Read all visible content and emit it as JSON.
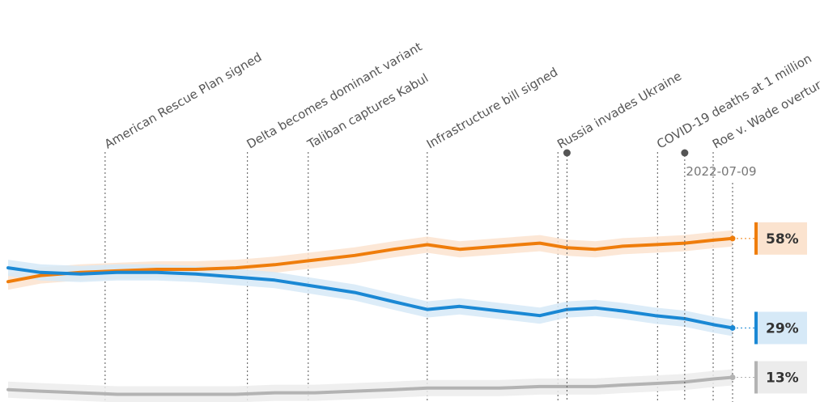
{
  "chart_data": {
    "type": "line",
    "x_range": [
      "2020-12-26",
      "2022-07-09"
    ],
    "y_range": [
      5,
      75
    ],
    "current_date_label": "2022-07-09",
    "events": [
      {
        "date": "2021-03-11",
        "label": "American Rescue Plan signed"
      },
      {
        "date": "2021-06-29",
        "label": "Delta becomes dominant variant"
      },
      {
        "date": "2021-08-15",
        "label": "Taliban captures Kabul"
      },
      {
        "date": "2021-11-15",
        "label": "Infrastructure bill signed"
      },
      {
        "date": "2022-02-24",
        "label": "Russia invades Ukraine"
      },
      {
        "date": "2022-05-12",
        "label": "COVID-19 deaths at 1 million"
      },
      {
        "date": "2022-06-24",
        "label": "Roe v. Wade overturned"
      }
    ],
    "markers": [
      {
        "date": "2022-03-03"
      },
      {
        "date": "2022-06-02"
      }
    ],
    "series": [
      {
        "color": "#ef7d0b",
        "band_color": "#fbe3cf",
        "end_label": "58%",
        "points": [
          [
            "2020-12-26",
            44
          ],
          [
            "2021-01-20",
            46
          ],
          [
            "2021-02-20",
            47
          ],
          [
            "2021-03-20",
            47.5
          ],
          [
            "2021-04-20",
            48
          ],
          [
            "2021-05-20",
            48
          ],
          [
            "2021-06-20",
            48.5
          ],
          [
            "2021-07-20",
            49.5
          ],
          [
            "2021-08-20",
            51
          ],
          [
            "2021-09-20",
            52.5
          ],
          [
            "2021-10-20",
            54.5
          ],
          [
            "2021-11-15",
            56
          ],
          [
            "2021-12-10",
            54.5
          ],
          [
            "2022-01-10",
            55.5
          ],
          [
            "2022-02-10",
            56.5
          ],
          [
            "2022-03-03",
            55
          ],
          [
            "2022-03-25",
            54.5
          ],
          [
            "2022-04-15",
            55.5
          ],
          [
            "2022-05-10",
            56
          ],
          [
            "2022-06-02",
            56.5
          ],
          [
            "2022-06-25",
            57.5
          ],
          [
            "2022-07-09",
            58
          ]
        ]
      },
      {
        "color": "#1a88d4",
        "band_color": "#d6e9f7",
        "end_label": "29%",
        "points": [
          [
            "2020-12-26",
            48.5
          ],
          [
            "2021-01-20",
            47
          ],
          [
            "2021-02-20",
            46.5
          ],
          [
            "2021-03-20",
            47
          ],
          [
            "2021-04-20",
            47
          ],
          [
            "2021-05-20",
            46.5
          ],
          [
            "2021-06-20",
            45.5
          ],
          [
            "2021-07-20",
            44.5
          ],
          [
            "2021-08-20",
            42.5
          ],
          [
            "2021-09-20",
            40.5
          ],
          [
            "2021-10-20",
            37.5
          ],
          [
            "2021-11-15",
            35
          ],
          [
            "2021-12-10",
            36
          ],
          [
            "2022-01-10",
            34.5
          ],
          [
            "2022-02-10",
            33
          ],
          [
            "2022-03-03",
            35
          ],
          [
            "2022-03-25",
            35.5
          ],
          [
            "2022-04-15",
            34.5
          ],
          [
            "2022-05-10",
            33
          ],
          [
            "2022-06-02",
            32
          ],
          [
            "2022-06-25",
            30
          ],
          [
            "2022-07-09",
            29
          ]
        ]
      },
      {
        "color": "#b3b3b3",
        "band_color": "#ececec",
        "end_label": "13%",
        "points": [
          [
            "2020-12-26",
            9
          ],
          [
            "2021-01-20",
            8.5
          ],
          [
            "2021-02-20",
            8
          ],
          [
            "2021-03-20",
            7.5
          ],
          [
            "2021-04-20",
            7.5
          ],
          [
            "2021-05-20",
            7.5
          ],
          [
            "2021-06-20",
            7.5
          ],
          [
            "2021-07-20",
            8
          ],
          [
            "2021-08-20",
            8
          ],
          [
            "2021-09-20",
            8.5
          ],
          [
            "2021-10-20",
            9
          ],
          [
            "2021-11-15",
            9.5
          ],
          [
            "2021-12-10",
            9.5
          ],
          [
            "2022-01-10",
            9.5
          ],
          [
            "2022-02-10",
            10
          ],
          [
            "2022-03-03",
            10
          ],
          [
            "2022-03-25",
            10
          ],
          [
            "2022-04-15",
            10.5
          ],
          [
            "2022-05-10",
            11
          ],
          [
            "2022-06-02",
            11.5
          ],
          [
            "2022-06-25",
            12.5
          ],
          [
            "2022-07-09",
            13
          ]
        ]
      }
    ]
  }
}
